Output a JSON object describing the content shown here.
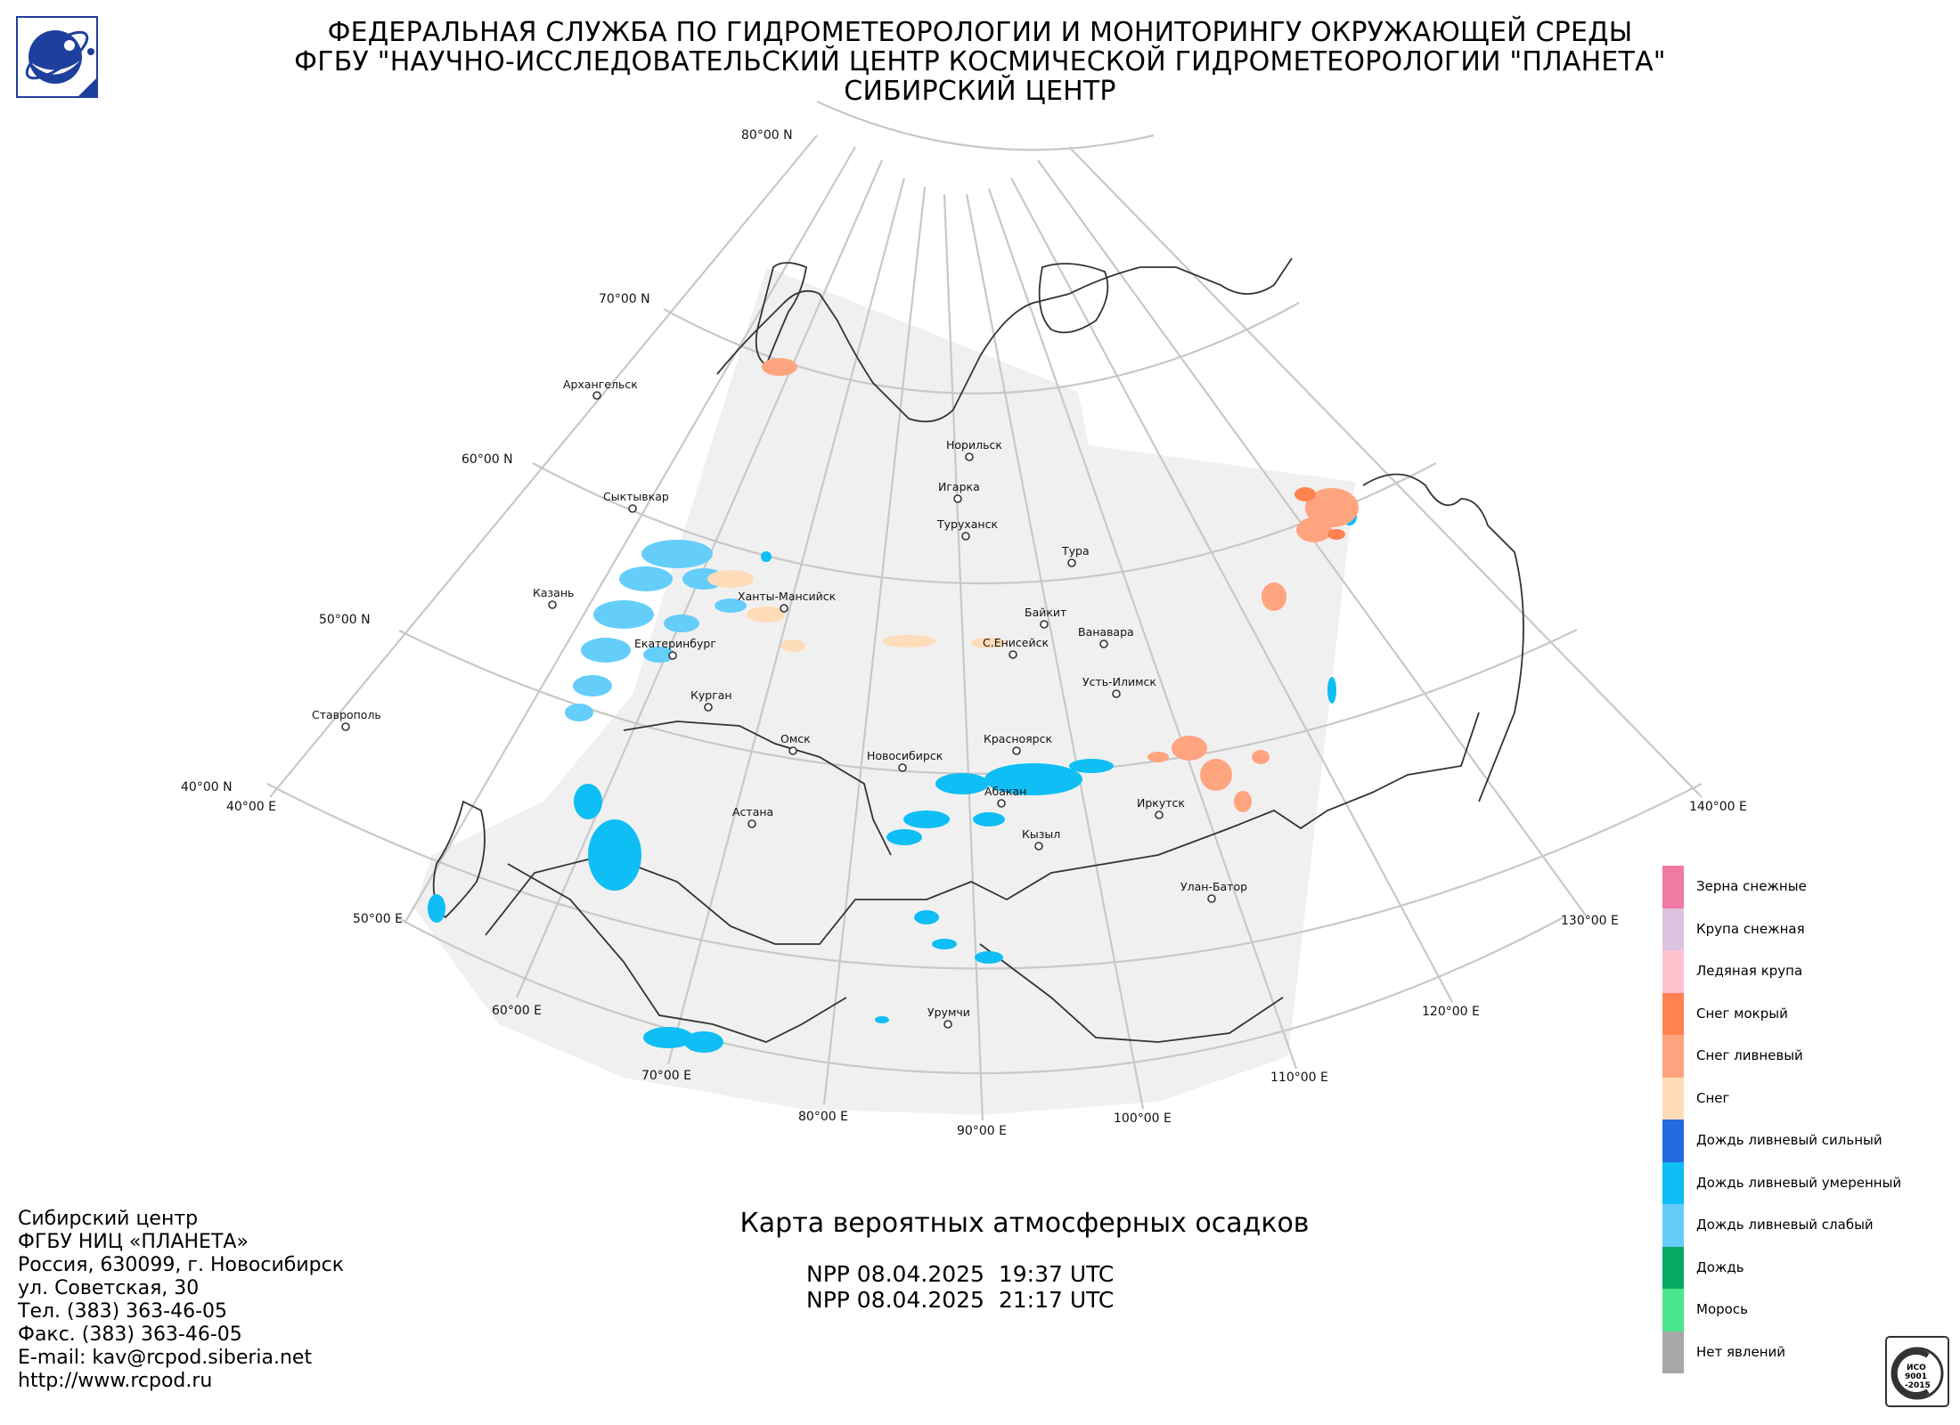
{
  "header": {
    "line1": "ФЕДЕРАЛЬНАЯ СЛУЖБА ПО ГИДРОМЕТЕОРОЛОГИИ И МОНИТОРИНГУ ОКРУЖАЮЩЕЙ СРЕДЫ",
    "line2": "ФГБУ \"НАУЧНО-ИССЛЕДОВАТЕЛЬСКИЙ ЦЕНТР КОСМИЧЕСКОЙ ГИДРОМЕТЕОРОЛОГИИ \"ПЛАНЕТА\"",
    "line3": "СИБИРСКИЙ ЦЕНТР"
  },
  "logo": {
    "icon": "planeta-logo-icon",
    "color": "#1f3f9e"
  },
  "map": {
    "lat_labels": [
      "80°00 N",
      "70°00 N",
      "60°00 N",
      "50°00 N",
      "40°00 N"
    ],
    "lon_labels": [
      "40°00 E",
      "50°00 E",
      "60°00 E",
      "70°00 E",
      "80°00 E",
      "90°00 E",
      "100°00 E",
      "110°00 E",
      "120°00 E",
      "130°00 E",
      "140°00 E"
    ],
    "cities": [
      "Архангельск",
      "Норильск",
      "Игарка",
      "Туруханск",
      "Тура",
      "Сыктывкар",
      "Казань",
      "Ханты-Мансийск",
      "Байкит",
      "Ванавара",
      "Екатеринбург",
      "С.Енисейск",
      "Усть-Илимск",
      "Курган",
      "Ставрополь",
      "Омск",
      "Красноярск",
      "Новосибирск",
      "Абакан",
      "Иркутск",
      "Астана",
      "Кызыл",
      "Улан-Батор",
      "Урумчи"
    ],
    "coverage_color": "#f0f0f0",
    "grid_color": "#c8c8c8"
  },
  "contact": {
    "line1": "Сибирский центр",
    "line2": "ФГБУ НИЦ «ПЛАНЕТА»",
    "line3": "Россия, 630099, г. Новосибирск",
    "line4": "ул. Советская, 30",
    "line5": "Тел. (383) 363-46-05",
    "line6": "Факс. (383) 363-46-05",
    "line7": "E-mail: kav@rcpod.siberia.net",
    "line8": "http://www.rcpod.ru"
  },
  "map_title": "Карта вероятных атмосферных осадков",
  "passes": [
    "NPP 08.04.2025  19:37 UTC",
    "NPP 08.04.2025  21:17 UTC"
  ],
  "legend": [
    {
      "label": "Зерна снежные",
      "color": "#f07aa4"
    },
    {
      "label": "Крупа снежная",
      "color": "#dcc3df"
    },
    {
      "label": "Ледяная крупа",
      "color": "#ffc3cf"
    },
    {
      "label": "Снег мокрый",
      "color": "#ff8250"
    },
    {
      "label": "Снег ливневый",
      "color": "#ffa47e"
    },
    {
      "label": "Снег",
      "color": "#ffdcb9"
    },
    {
      "label": "Дождь ливневый сильный",
      "color": "#2569e1"
    },
    {
      "label": "Дождь ливневый умеренный",
      "color": "#0ebef5"
    },
    {
      "label": "Дождь ливневый слабый",
      "color": "#65cdfa"
    },
    {
      "label": "Дождь",
      "color": "#07aa64"
    },
    {
      "label": "Морось",
      "color": "#4be68c"
    },
    {
      "label": "Нет явлений",
      "color": "#a8a8a8"
    }
  ],
  "iso_badge": {
    "text1": "ИСО",
    "text2": "9001",
    "text3": "-2015"
  }
}
